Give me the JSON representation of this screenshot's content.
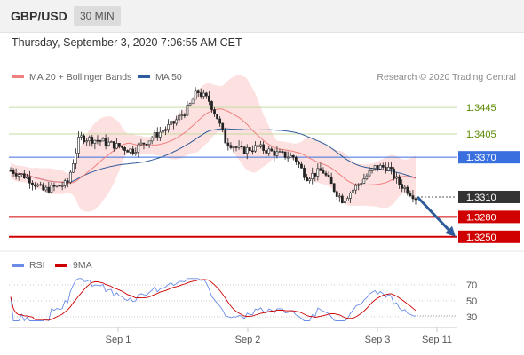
{
  "header": {
    "symbol": "GBP/USD",
    "timeframe": "30 MIN"
  },
  "datetime": "Thursday, September 3, 2020 7:06:55 AM CET",
  "legend": {
    "ma20": "MA 20 + Bollinger Bands",
    "ma50": "MA 50",
    "credit": "Research © 2020 Trading Central"
  },
  "colors": {
    "bollinger": "#fcd5d5",
    "ma20": "#f08080",
    "ma50": "#2e5b99",
    "resistance": "#5a8a00",
    "support": "#d00000",
    "pivot": "#3a6fe0",
    "rsi": "#6b8de8",
    "rsi_ma": "#cc0000",
    "arrow": "#2e5b99"
  },
  "levels": [
    {
      "value": 1.3445,
      "label": "1.3445",
      "kind": "resistance"
    },
    {
      "value": 1.3405,
      "label": "1.3405",
      "kind": "resistance"
    },
    {
      "value": 1.337,
      "label": "1.3370",
      "kind": "pivot"
    },
    {
      "value": 1.331,
      "label": "1.3310",
      "kind": "last"
    },
    {
      "value": 1.328,
      "label": "1.3280",
      "kind": "support"
    },
    {
      "value": 1.325,
      "label": "1.3250",
      "kind": "support"
    }
  ],
  "rsi_panel": {
    "legend_rsi": "RSI",
    "legend_ma": "9MA",
    "ticks": [
      "70",
      "50",
      "30"
    ]
  },
  "xaxis": {
    "ticks": [
      "Sep 1",
      "Sep 2",
      "Sep 3",
      "Sep 11"
    ]
  },
  "chart_data": {
    "type": "candlestick",
    "ylim": [
      1.3235,
      1.348
    ],
    "grid": false,
    "legend": "top-left",
    "key_points": [
      {
        "x": "Aug 31",
        "close": 1.335
      },
      {
        "x": "Sep 1",
        "close": 1.341
      },
      {
        "x": "Sep 1",
        "high": 1.348
      },
      {
        "x": "Sep 2",
        "close": 1.3365
      },
      {
        "x": "Sep 2",
        "close": 1.3325
      },
      {
        "x": "Sep 3",
        "close": 1.3355
      },
      {
        "x": "Sep 3",
        "close": 1.331
      }
    ],
    "forecast_arrow": {
      "from": 1.331,
      "to": 1.325
    },
    "rsi_ylim": [
      20,
      80
    ]
  }
}
